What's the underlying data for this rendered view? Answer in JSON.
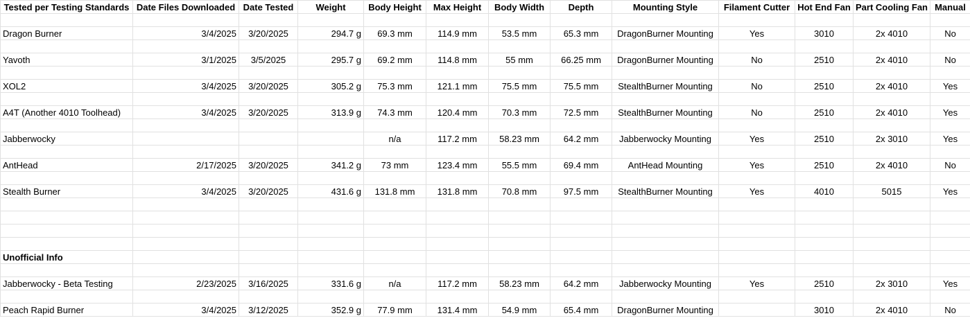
{
  "headers": [
    "Tested per Testing Standards",
    "Date Files Downloaded",
    "Date Tested",
    "Weight",
    "Body Height",
    "Max Height",
    "Body Width",
    "Depth",
    "Mounting Style",
    "Filament Cutter",
    "Hot End Fan",
    "Part Cooling Fan",
    "Manual"
  ],
  "official_rows": [
    [
      "Dragon Burner",
      "3/4/2025",
      "3/20/2025",
      "294.7 g",
      "69.3 mm",
      "114.9 mm",
      "53.5 mm",
      "65.3 mm",
      "DragonBurner Mounting",
      "Yes",
      "3010",
      "2x 4010",
      "No"
    ],
    [
      "Yavoth",
      "3/1/2025",
      "3/5/2025",
      "295.7 g",
      "69.2 mm",
      "114.8 mm",
      "55 mm",
      "66.25 mm",
      "DragonBurner Mounting",
      "No",
      "2510",
      "2x 4010",
      "No"
    ],
    [
      "XOL2",
      "3/4/2025",
      "3/20/2025",
      "305.2 g",
      "75.3 mm",
      "121.1 mm",
      "75.5 mm",
      "75.5 mm",
      "StealthBurner Mounting",
      "No",
      "2510",
      "2x 4010",
      "Yes"
    ],
    [
      "A4T (Another 4010 Toolhead)",
      "3/4/2025",
      "3/20/2025",
      "313.9 g",
      "74.3 mm",
      "120.4  mm",
      "70.3 mm",
      "72.5 mm",
      "StealthBurner Mounting",
      "No",
      "2510",
      "2x 4010",
      "Yes"
    ],
    [
      "Jabberwocky",
      "",
      "",
      "",
      "n/a",
      "117.2 mm",
      "58.23 mm",
      "64.2 mm",
      "Jabberwocky Mounting",
      "Yes",
      "2510",
      "2x 3010",
      "Yes"
    ],
    [
      "AntHead",
      "2/17/2025",
      "3/20/2025",
      "341.2 g",
      "73 mm",
      "123.4 mm",
      "55.5 mm",
      "69.4 mm",
      "AntHead Mounting",
      "Yes",
      "2510",
      "2x 4010",
      "No"
    ],
    [
      "Stealth Burner",
      "3/4/2025",
      "3/20/2025",
      "431.6 g",
      "131.8 mm",
      "131.8 mm",
      "70.8 mm",
      "97.5 mm",
      "StealthBurner Mounting",
      "Yes",
      "4010",
      "5015",
      "Yes"
    ]
  ],
  "section_title": "Unofficial Info",
  "unofficial_rows": [
    [
      "Jabberwocky - Beta Testing",
      "2/23/2025",
      "3/16/2025",
      "331.6 g",
      "n/a",
      "117.2 mm",
      "58.23 mm",
      "64.2 mm",
      "Jabberwocky Mounting",
      "Yes",
      "2510",
      "2x 3010",
      "Yes"
    ],
    [
      "Peach Rapid Burner",
      "3/4/2025",
      "3/12/2025",
      "352.9 g",
      "77.9 mm",
      "131.4 mm",
      "54.9 mm",
      "65.4 mm",
      "DragonBurner Mounting",
      "",
      "3010",
      "2x 4010",
      "No"
    ]
  ]
}
